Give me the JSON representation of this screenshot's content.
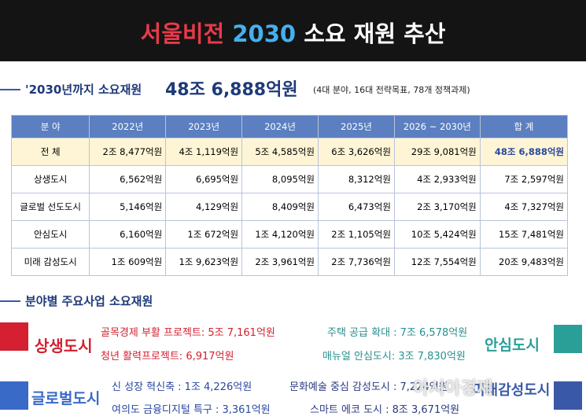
{
  "header": {
    "title_parts": [
      "서울비전",
      "2030",
      "소요 재원 추산"
    ]
  },
  "summary": {
    "label": "'2030년까지 소요재원",
    "amount": "48조 6,888억원",
    "note": "(4대 분야, 16대 전략목표, 78개 정책과제)"
  },
  "table": {
    "header": [
      "분 야",
      "2022년",
      "2023년",
      "2024년",
      "2025년",
      "2026 ~ 2030년",
      "합 계"
    ],
    "rows": [
      [
        "전 체",
        "2조 8,477억원",
        "4조 1,119억원",
        "5조 4,585억원",
        "6조 3,626억원",
        "29조 9,081억원",
        "48조 6,888억원"
      ],
      [
        "상생도시",
        "6,562억원",
        "6,695억원",
        "8,095억원",
        "8,312억원",
        "4조 2,933억원",
        "7조 2,597억원"
      ],
      [
        "글로벌 선도도시",
        "5,146억원",
        "4,129억원",
        "8,409억원",
        "6,473억원",
        "2조 3,170억원",
        "4조 7,327억원"
      ],
      [
        "안심도시",
        "6,160억원",
        "1조 672억원",
        "1조 4,120억원",
        "2조 1,105억원",
        "10조 5,424억원",
        "15조 7,481억원"
      ],
      [
        "미래 감성도시",
        "1조 609억원",
        "1조 9,623억원",
        "2조 3,961억원",
        "2조 7,736억원",
        "12조 7,554억원",
        "20조 9,483억원"
      ]
    ]
  },
  "section": {
    "title": "분야별 주요사업 소요재원",
    "groups": [
      {
        "name": "상생도시",
        "items": [
          "골목경제 부활 프로젝트: 5조 7,161억원",
          "청년 활력프로젝트: 6,917억원"
        ]
      },
      {
        "name": "안심도시",
        "items": [
          "주택 공급 확대 : 7조 6,578억원",
          "매뉴얼 안심도시: 3조 7,830억원"
        ]
      },
      {
        "name": "글로벌도시",
        "items": [
          "신 성장 혁신축 : 1조 4,226억원",
          "여의도 금융디지털 특구 : 3,361억원"
        ]
      },
      {
        "name": "미래감성도시",
        "items": [
          "문화예술 중심 감성도시 : 7,224억원",
          "스마트 에코 도시 : 8조 3,671억원"
        ]
      }
    ]
  },
  "watermark": "아시아경제"
}
